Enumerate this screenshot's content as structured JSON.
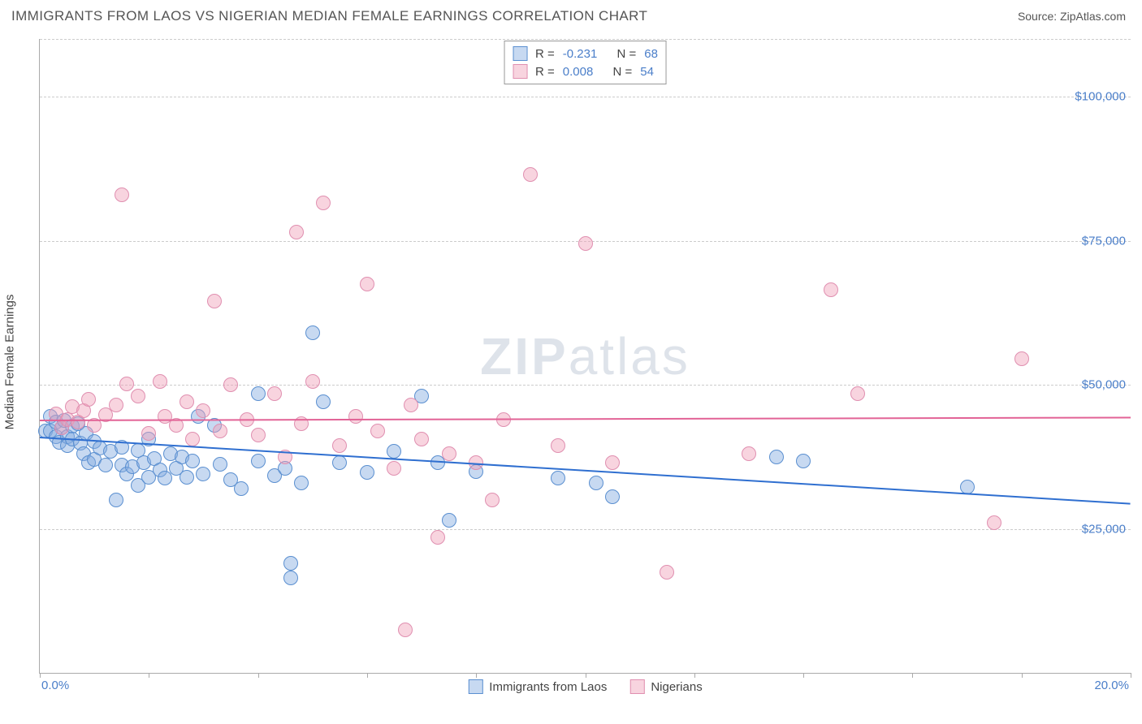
{
  "header": {
    "title": "IMMIGRANTS FROM LAOS VS NIGERIAN MEDIAN FEMALE EARNINGS CORRELATION CHART",
    "source": "Source: ZipAtlas.com"
  },
  "chart": {
    "type": "scatter",
    "y_label": "Median Female Earnings",
    "watermark_bold": "ZIP",
    "watermark_rest": "atlas",
    "background_color": "#ffffff",
    "grid_color": "#cccccc",
    "axis_color": "#aaaaaa",
    "text_color": "#444444",
    "tick_color": "#4a7ec9",
    "x_axis": {
      "min": 0.0,
      "max": 20.0,
      "ticks": [
        0,
        2,
        4,
        6,
        8,
        10,
        12,
        14,
        16,
        18,
        20
      ],
      "label_left": "0.0%",
      "label_right": "20.0%"
    },
    "y_axis": {
      "min": 0,
      "max": 110000,
      "grid_values": [
        25000,
        50000,
        75000,
        100000
      ],
      "grid_labels": [
        "$25,000",
        "$50,000",
        "$75,000",
        "$100,000"
      ]
    },
    "marker_radius": 9,
    "marker_border_width": 1.3,
    "series": [
      {
        "id": "laos",
        "name": "Immigrants from Laos",
        "fill": "rgba(130,170,225,0.45)",
        "stroke": "#5a8fd0",
        "trend_color": "#2f6fd0",
        "trend": {
          "y_at_xmin": 41000,
          "y_at_xmax": 29500
        },
        "stats": {
          "R": "-0.231",
          "N": "68"
        },
        "points": [
          [
            0.1,
            42000
          ],
          [
            0.2,
            44500
          ],
          [
            0.2,
            42000
          ],
          [
            0.3,
            43500
          ],
          [
            0.3,
            41000
          ],
          [
            0.35,
            40000
          ],
          [
            0.4,
            42500
          ],
          [
            0.45,
            43800
          ],
          [
            0.5,
            41000
          ],
          [
            0.5,
            39500
          ],
          [
            0.6,
            42800
          ],
          [
            0.6,
            40500
          ],
          [
            0.7,
            43200
          ],
          [
            0.75,
            39800
          ],
          [
            0.8,
            38000
          ],
          [
            0.85,
            41500
          ],
          [
            0.9,
            36500
          ],
          [
            1.0,
            40200
          ],
          [
            1.0,
            37000
          ],
          [
            1.1,
            39000
          ],
          [
            1.2,
            36000
          ],
          [
            1.3,
            38500
          ],
          [
            1.4,
            30000
          ],
          [
            1.5,
            39200
          ],
          [
            1.5,
            36000
          ],
          [
            1.6,
            34500
          ],
          [
            1.7,
            35800
          ],
          [
            1.8,
            38600
          ],
          [
            1.8,
            32500
          ],
          [
            1.9,
            36500
          ],
          [
            2.0,
            34000
          ],
          [
            2.0,
            40500
          ],
          [
            2.1,
            37200
          ],
          [
            2.2,
            35200
          ],
          [
            2.3,
            33800
          ],
          [
            2.4,
            38000
          ],
          [
            2.5,
            35500
          ],
          [
            2.6,
            37500
          ],
          [
            2.7,
            34000
          ],
          [
            2.8,
            36800
          ],
          [
            2.9,
            44500
          ],
          [
            3.0,
            34500
          ],
          [
            3.2,
            43000
          ],
          [
            3.3,
            36200
          ],
          [
            3.5,
            33500
          ],
          [
            3.7,
            32000
          ],
          [
            4.0,
            48500
          ],
          [
            4.0,
            36800
          ],
          [
            4.3,
            34200
          ],
          [
            4.5,
            35500
          ],
          [
            4.6,
            19000
          ],
          [
            4.6,
            16500
          ],
          [
            4.8,
            33000
          ],
          [
            5.0,
            59000
          ],
          [
            5.2,
            47000
          ],
          [
            5.5,
            36500
          ],
          [
            6.0,
            34800
          ],
          [
            6.5,
            38500
          ],
          [
            7.0,
            48000
          ],
          [
            7.3,
            36500
          ],
          [
            7.5,
            26500
          ],
          [
            8.0,
            35000
          ],
          [
            9.5,
            33800
          ],
          [
            10.2,
            33000
          ],
          [
            10.5,
            30500
          ],
          [
            13.5,
            37500
          ],
          [
            14.0,
            36800
          ],
          [
            17.0,
            32200
          ]
        ]
      },
      {
        "id": "nigerians",
        "name": "Nigerians",
        "fill": "rgba(240,160,185,0.45)",
        "stroke": "#e08fb0",
        "trend_color": "#e26396",
        "trend": {
          "y_at_xmin": 44000,
          "y_at_xmax": 44500
        },
        "stats": {
          "R": "0.008",
          "N": "54"
        },
        "points": [
          [
            0.3,
            45000
          ],
          [
            0.4,
            42500
          ],
          [
            0.5,
            44000
          ],
          [
            0.6,
            46200
          ],
          [
            0.7,
            43500
          ],
          [
            0.8,
            45500
          ],
          [
            0.9,
            47500
          ],
          [
            1.0,
            43000
          ],
          [
            1.2,
            44800
          ],
          [
            1.4,
            46500
          ],
          [
            1.5,
            83000
          ],
          [
            1.6,
            50200
          ],
          [
            1.8,
            48000
          ],
          [
            2.0,
            41500
          ],
          [
            2.2,
            50500
          ],
          [
            2.3,
            44500
          ],
          [
            2.5,
            43000
          ],
          [
            2.7,
            47000
          ],
          [
            2.8,
            40500
          ],
          [
            3.0,
            45500
          ],
          [
            3.2,
            64500
          ],
          [
            3.3,
            42000
          ],
          [
            3.5,
            50000
          ],
          [
            3.8,
            44000
          ],
          [
            4.0,
            41200
          ],
          [
            4.3,
            48500
          ],
          [
            4.5,
            37500
          ],
          [
            4.7,
            76500
          ],
          [
            4.8,
            43200
          ],
          [
            5.0,
            50500
          ],
          [
            5.2,
            81500
          ],
          [
            5.5,
            39500
          ],
          [
            5.8,
            44500
          ],
          [
            6.0,
            67500
          ],
          [
            6.2,
            42000
          ],
          [
            6.5,
            35500
          ],
          [
            6.8,
            46500
          ],
          [
            7.0,
            40500
          ],
          [
            7.3,
            23500
          ],
          [
            7.5,
            38000
          ],
          [
            8.0,
            36500
          ],
          [
            8.3,
            30000
          ],
          [
            8.5,
            44000
          ],
          [
            9.0,
            86500
          ],
          [
            9.5,
            39500
          ],
          [
            10.0,
            74500
          ],
          [
            10.5,
            36500
          ],
          [
            11.5,
            17500
          ],
          [
            13.0,
            38000
          ],
          [
            14.5,
            66500
          ],
          [
            15.0,
            48500
          ],
          [
            17.5,
            26000
          ],
          [
            18.0,
            54500
          ],
          [
            6.7,
            7500
          ]
        ]
      }
    ],
    "top_legend_labels": {
      "R": "R =",
      "N": "N ="
    },
    "bottom_legend_label_series1": "Immigrants from Laos",
    "bottom_legend_label_series2": "Nigerians"
  }
}
